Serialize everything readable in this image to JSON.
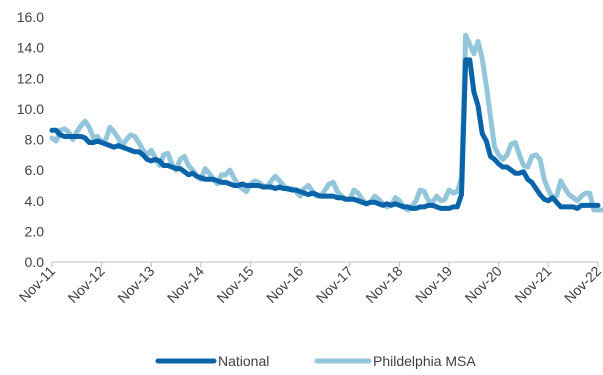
{
  "chart_data": {
    "type": "line",
    "title": "",
    "xlabel": "",
    "ylabel": "",
    "ylim": [
      0,
      16
    ],
    "y_ticks": [
      "0.0",
      "2.0",
      "4.0",
      "6.0",
      "8.0",
      "10.0",
      "12.0",
      "14.0",
      "16.0"
    ],
    "x_tick_labels": [
      "Nov-11",
      "Nov-12",
      "Nov-13",
      "Nov-14",
      "Nov-15",
      "Nov-16",
      "Nov-17",
      "Nov-18",
      "Nov-19",
      "Nov-20",
      "Nov-21",
      "Nov-22"
    ],
    "grid": false,
    "legend_position": "bottom-center",
    "series": [
      {
        "name": "National",
        "color": "#0b64a8",
        "values": [
          8.6,
          8.6,
          8.3,
          8.2,
          8.2,
          8.2,
          8.2,
          8.2,
          8.1,
          7.8,
          7.8,
          7.9,
          7.8,
          7.7,
          7.6,
          7.5,
          7.6,
          7.5,
          7.4,
          7.3,
          7.2,
          7.2,
          7.0,
          6.7,
          6.6,
          6.7,
          6.6,
          6.3,
          6.3,
          6.2,
          6.1,
          6.1,
          5.9,
          5.7,
          5.8,
          5.6,
          5.5,
          5.4,
          5.4,
          5.4,
          5.3,
          5.2,
          5.2,
          5.1,
          5.0,
          5.0,
          5.1,
          5.0,
          5.0,
          5.0,
          5.0,
          4.9,
          4.9,
          4.9,
          4.8,
          4.9,
          4.8,
          4.8,
          4.7,
          4.7,
          4.6,
          4.5,
          4.4,
          4.5,
          4.4,
          4.3,
          4.3,
          4.3,
          4.3,
          4.2,
          4.2,
          4.1,
          4.1,
          4.1,
          4.0,
          3.9,
          3.8,
          3.9,
          3.9,
          3.8,
          3.7,
          3.8,
          3.7,
          3.8,
          3.7,
          3.6,
          3.6,
          3.5,
          3.5,
          3.6,
          3.6,
          3.7,
          3.7,
          3.6,
          3.5,
          3.5,
          3.5,
          3.6,
          3.6,
          4.4,
          13.2,
          13.2,
          11.1,
          10.2,
          8.4,
          7.9,
          6.9,
          6.7,
          6.4,
          6.2,
          6.2,
          6.0,
          5.8,
          5.8,
          5.9,
          5.4,
          5.2,
          4.8,
          4.4,
          4.1,
          4.0,
          4.2,
          3.9,
          3.6,
          3.6,
          3.6,
          3.6,
          3.5,
          3.7,
          3.7,
          3.7,
          3.7,
          3.7
        ]
      },
      {
        "name": "Phildelphia MSA",
        "color": "#93c6db",
        "values": [
          8.1,
          7.9,
          8.6,
          8.7,
          8.5,
          8.0,
          8.5,
          8.9,
          9.2,
          8.8,
          8.1,
          8.2,
          7.8,
          8.0,
          8.8,
          8.5,
          8.1,
          7.6,
          8.0,
          8.3,
          8.2,
          7.8,
          7.3,
          7.0,
          7.3,
          6.8,
          6.3,
          7.0,
          7.1,
          6.4,
          6.0,
          6.7,
          6.9,
          6.3,
          6.0,
          5.6,
          5.4,
          6.1,
          5.8,
          5.4,
          5.1,
          5.7,
          5.7,
          6.0,
          5.5,
          5.0,
          4.8,
          4.6,
          5.1,
          5.3,
          5.2,
          5.0,
          4.9,
          5.3,
          5.6,
          5.3,
          5.0,
          4.7,
          4.8,
          4.6,
          4.3,
          4.8,
          5.0,
          4.6,
          4.3,
          4.3,
          4.7,
          5.1,
          5.2,
          4.6,
          4.3,
          4.1,
          4.1,
          4.7,
          4.5,
          4.1,
          3.8,
          3.9,
          4.3,
          4.1,
          3.8,
          3.6,
          3.7,
          4.2,
          4.0,
          3.6,
          3.4,
          3.6,
          4.0,
          4.7,
          4.6,
          4.0,
          3.9,
          4.3,
          4.0,
          4.1,
          4.7,
          4.5,
          4.6,
          5.5,
          14.8,
          14.2,
          13.6,
          14.4,
          13.3,
          11.5,
          9.5,
          7.5,
          7.0,
          6.7,
          7.0,
          7.7,
          7.8,
          7.0,
          6.3,
          6.2,
          6.9,
          7.0,
          6.7,
          5.4,
          4.7,
          4.2,
          4.3,
          5.3,
          4.8,
          4.4,
          4.2,
          4.0,
          4.3,
          4.5,
          4.5,
          3.4,
          3.4,
          3.4
        ]
      }
    ]
  }
}
